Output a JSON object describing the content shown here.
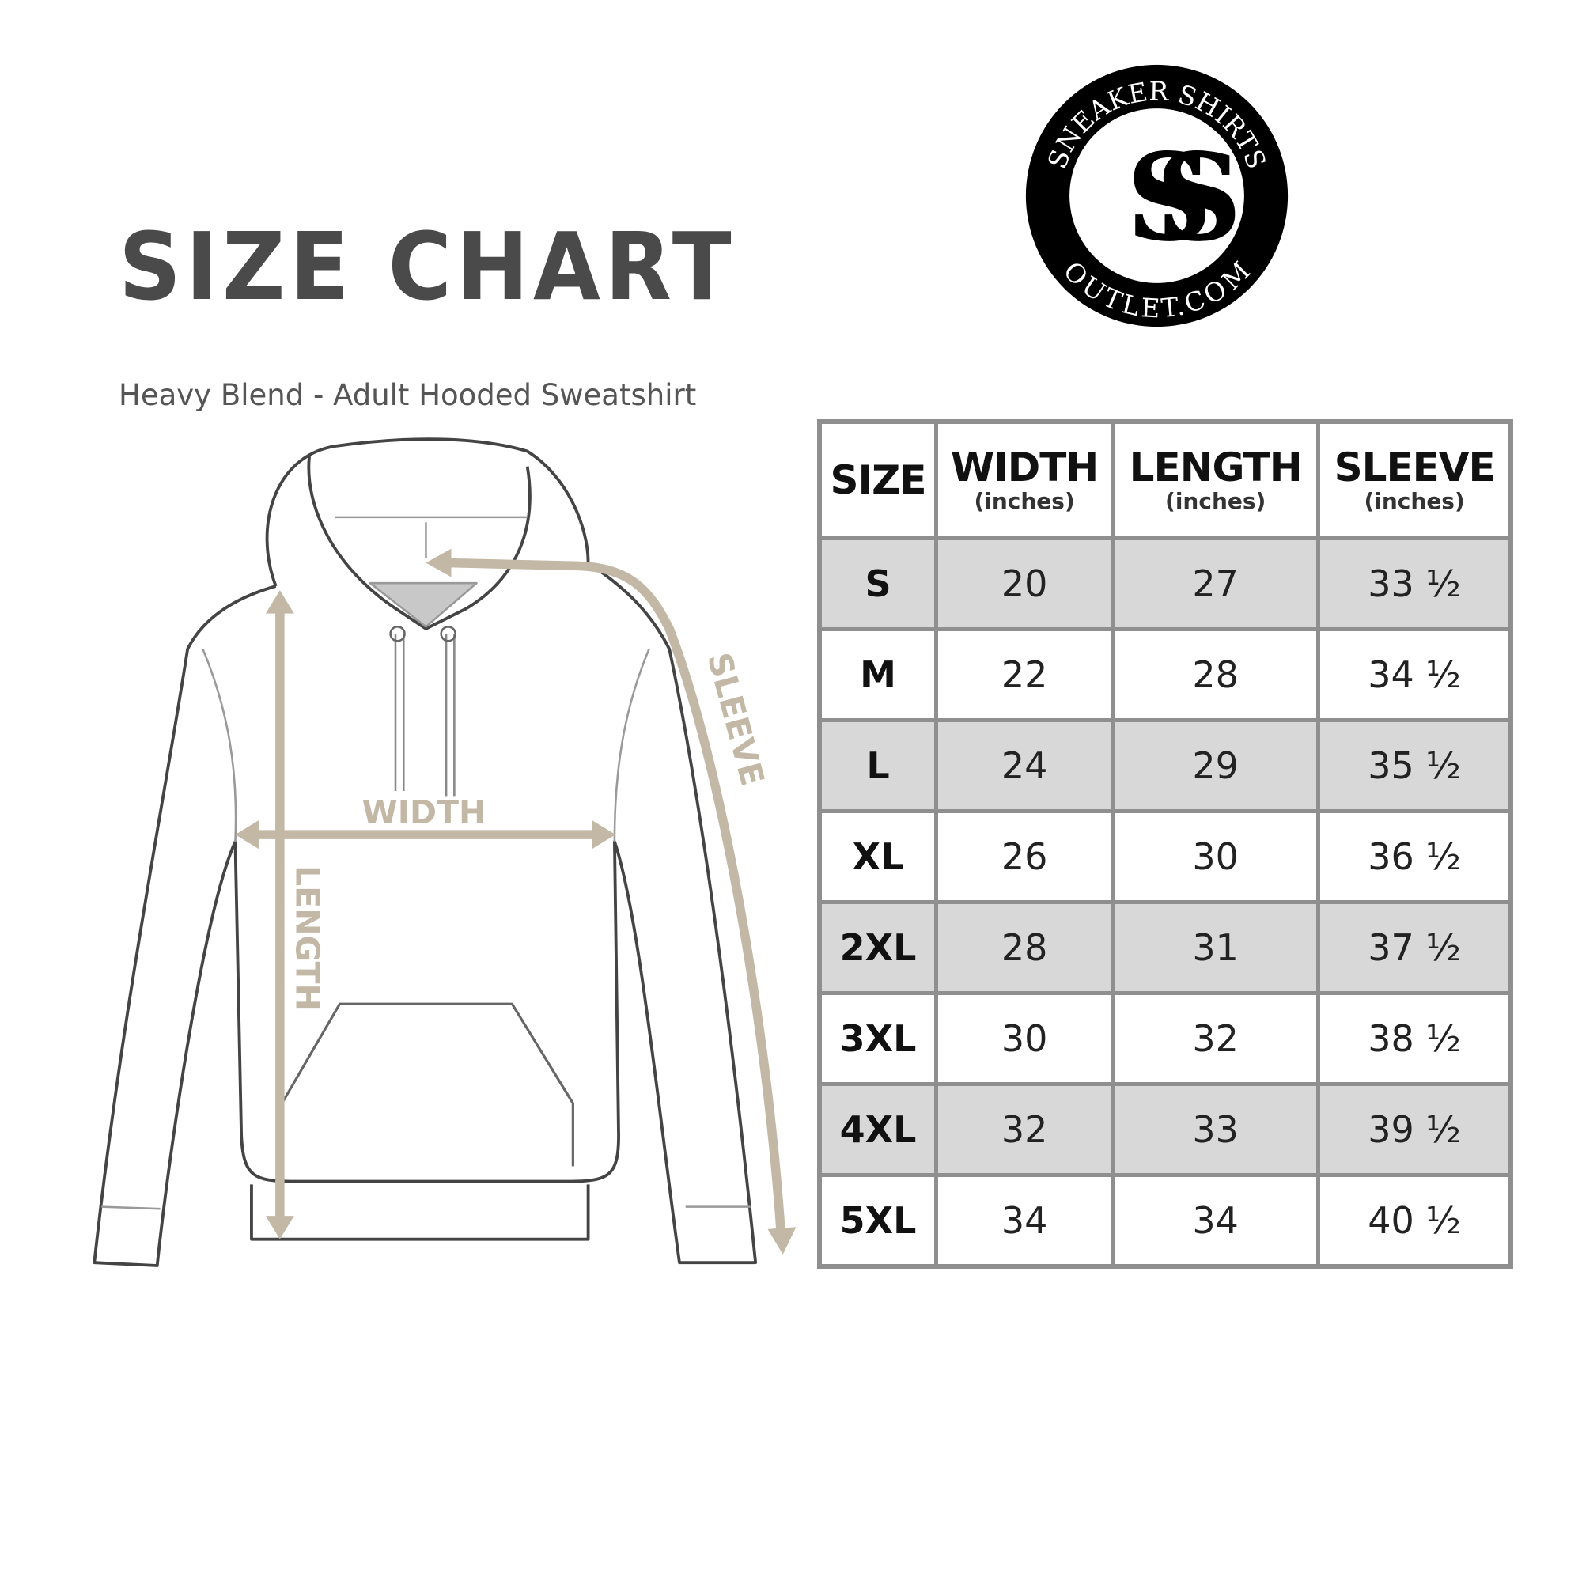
{
  "header": {
    "title": "SIZE CHART",
    "subtitle": "Heavy Blend - Adult Hooded Sweatshirt"
  },
  "logo": {
    "top_text": "SNEAKER SHIRTS",
    "bottom_text": "OUTLET.COM",
    "monogram": "SS"
  },
  "diagram": {
    "width_label": "WIDTH",
    "length_label": "LENGTH",
    "sleeve_label": "SLEEVE",
    "arrow_color": "#c3b8a5"
  },
  "table": {
    "headers": [
      {
        "label": "SIZE",
        "unit": ""
      },
      {
        "label": "WIDTH",
        "unit": "(inches)"
      },
      {
        "label": "LENGTH",
        "unit": "(inches)"
      },
      {
        "label": "SLEEVE",
        "unit": "(inches)"
      }
    ],
    "rows": [
      [
        "S",
        "20",
        "27",
        "33 ½"
      ],
      [
        "M",
        "22",
        "28",
        "34 ½"
      ],
      [
        "L",
        "24",
        "29",
        "35 ½"
      ],
      [
        "XL",
        "26",
        "30",
        "36 ½"
      ],
      [
        "2XL",
        "28",
        "31",
        "37 ½"
      ],
      [
        "3XL",
        "30",
        "32",
        "38 ½"
      ],
      [
        "4XL",
        "32",
        "33",
        "39 ½"
      ],
      [
        "5XL",
        "34",
        "34",
        "40 ½"
      ]
    ]
  }
}
